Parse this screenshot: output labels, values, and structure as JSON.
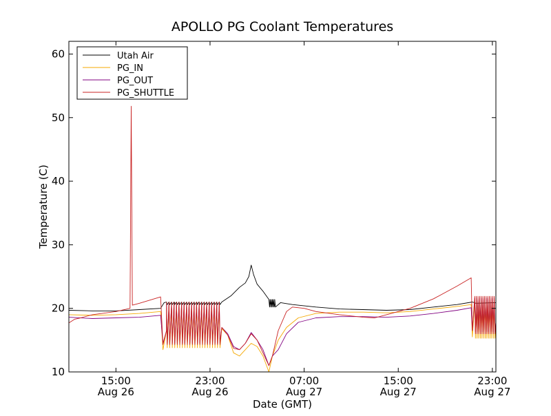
{
  "chart_data": {
    "type": "line",
    "title": "APOLLO PG Coolant Temperatures",
    "xlabel": "Date (GMT)",
    "ylabel": "Temperature (C)",
    "x_unit": "hours since Aug 26 00:00 GMT",
    "xlim": [
      11.0,
      47.3
    ],
    "ylim": [
      10,
      62
    ],
    "y_ticks": [
      10,
      20,
      30,
      40,
      50,
      60
    ],
    "x_ticks": [
      {
        "x": 15,
        "line1": "15:00",
        "line2": "Aug 26"
      },
      {
        "x": 23,
        "line1": "23:00",
        "line2": "Aug 26"
      },
      {
        "x": 31,
        "line1": "07:00",
        "line2": "Aug 27"
      },
      {
        "x": 39,
        "line1": "15:00",
        "line2": "Aug 27"
      },
      {
        "x": 47,
        "line1": "23:00",
        "line2": "Aug 27"
      }
    ],
    "legend_position": "top-left",
    "series": [
      {
        "name": "Utah Air",
        "color": "#000000",
        "points": [
          [
            11.0,
            19.7
          ],
          [
            13,
            19.6
          ],
          [
            15,
            19.6
          ],
          [
            17,
            19.8
          ],
          [
            18.8,
            20.0
          ],
          [
            19.1,
            20.9
          ],
          [
            20,
            20.9
          ],
          [
            22,
            20.9
          ],
          [
            24.0,
            21.0
          ],
          [
            24.8,
            22.0
          ],
          [
            25.5,
            23.3
          ],
          [
            26.0,
            24.0
          ],
          [
            26.3,
            25.0
          ],
          [
            26.5,
            26.8
          ],
          [
            26.7,
            25.3
          ],
          [
            27,
            23.8
          ],
          [
            27.5,
            22.7
          ],
          [
            28,
            21.4
          ],
          [
            28.5,
            20.6
          ],
          [
            29,
            20.9
          ],
          [
            30,
            20.6
          ],
          [
            32,
            20.2
          ],
          [
            34,
            19.9
          ],
          [
            36,
            19.8
          ],
          [
            38,
            19.7
          ],
          [
            40,
            19.8
          ],
          [
            42,
            20.2
          ],
          [
            44,
            20.6
          ],
          [
            45.3,
            21.0
          ],
          [
            45.6,
            20.8
          ],
          [
            47.3,
            20.9
          ]
        ],
        "cycles": [
          {
            "start": 19.3,
            "end": 24.0,
            "n": 22,
            "min": 20.6,
            "max": 21.0
          },
          {
            "start": 28.0,
            "end": 28.6,
            "n": 6,
            "min": 20.2,
            "max": 21.4
          }
        ]
      },
      {
        "name": "PG_IN",
        "color": "#f5a800",
        "points": [
          [
            11.0,
            19.0
          ],
          [
            13,
            18.9
          ],
          [
            15,
            19.0
          ],
          [
            17,
            19.2
          ],
          [
            18.8,
            19.5
          ],
          [
            19.0,
            13.5
          ],
          [
            19.3,
            16.5
          ],
          [
            24.0,
            16.8
          ],
          [
            24.5,
            15.8
          ],
          [
            25,
            13.0
          ],
          [
            25.5,
            12.5
          ],
          [
            26,
            13.5
          ],
          [
            26.5,
            14.5
          ],
          [
            27,
            14.0
          ],
          [
            27.5,
            12.5
          ],
          [
            28,
            10.0
          ],
          [
            28.3,
            12.5
          ],
          [
            28.8,
            15.0
          ],
          [
            29.5,
            17.0
          ],
          [
            30.5,
            18.5
          ],
          [
            32,
            19.2
          ],
          [
            34,
            19.4
          ],
          [
            36,
            19.4
          ],
          [
            38,
            19.3
          ],
          [
            40,
            19.5
          ],
          [
            42,
            19.9
          ],
          [
            44,
            20.3
          ],
          [
            45.2,
            20.6
          ],
          [
            45.3,
            15.5
          ],
          [
            45.6,
            18.0
          ],
          [
            47.3,
            17.5
          ]
        ],
        "cycles": [
          {
            "start": 19.3,
            "end": 24.0,
            "n": 22,
            "min": 13.8,
            "max": 20.0
          },
          {
            "start": 45.5,
            "end": 47.3,
            "n": 13,
            "min": 15.3,
            "max": 21.0
          }
        ]
      },
      {
        "name": "PG_OUT",
        "color": "#800080",
        "points": [
          [
            11.0,
            18.6
          ],
          [
            13,
            18.4
          ],
          [
            15,
            18.5
          ],
          [
            17,
            18.6
          ],
          [
            18.8,
            18.9
          ],
          [
            19.0,
            14.5
          ],
          [
            19.3,
            16.5
          ],
          [
            24.0,
            17.0
          ],
          [
            24.5,
            16.0
          ],
          [
            25,
            14.0
          ],
          [
            25.5,
            13.5
          ],
          [
            26,
            14.5
          ],
          [
            26.5,
            16.2
          ],
          [
            27,
            15.0
          ],
          [
            27.5,
            13.5
          ],
          [
            28,
            11.0
          ],
          [
            28.3,
            12.5
          ],
          [
            28.8,
            13.5
          ],
          [
            29.5,
            16.0
          ],
          [
            30.5,
            17.8
          ],
          [
            32,
            18.5
          ],
          [
            34,
            18.7
          ],
          [
            36,
            18.7
          ],
          [
            38,
            18.6
          ],
          [
            40,
            18.8
          ],
          [
            42,
            19.2
          ],
          [
            44,
            19.7
          ],
          [
            45.2,
            20.1
          ],
          [
            45.3,
            16.5
          ],
          [
            45.6,
            18.0
          ],
          [
            47.3,
            17.8
          ]
        ],
        "cycles": [
          {
            "start": 19.3,
            "end": 24.0,
            "n": 22,
            "min": 14.5,
            "max": 20.7
          },
          {
            "start": 45.5,
            "end": 47.3,
            "n": 13,
            "min": 16.3,
            "max": 21.6
          }
        ]
      },
      {
        "name": "PG_SHUTTLE",
        "color": "#c82020",
        "points": [
          [
            11.0,
            17.7
          ],
          [
            11.5,
            18.3
          ],
          [
            12,
            18.5
          ],
          [
            13,
            19.0
          ],
          [
            15,
            19.5
          ],
          [
            16.2,
            20.0
          ],
          [
            16.3,
            51.8
          ],
          [
            16.4,
            20.5
          ],
          [
            17,
            20.8
          ],
          [
            18.8,
            21.8
          ],
          [
            19.0,
            14.3
          ],
          [
            19.3,
            16.5
          ],
          [
            24.0,
            17.0
          ],
          [
            24.5,
            15.8
          ],
          [
            25,
            13.7
          ],
          [
            25.5,
            13.5
          ],
          [
            26,
            14.5
          ],
          [
            26.5,
            16.0
          ],
          [
            27,
            15.0
          ],
          [
            27.5,
            13.0
          ],
          [
            28,
            11.0
          ],
          [
            28.3,
            12.5
          ],
          [
            28.8,
            16.5
          ],
          [
            29.5,
            19.5
          ],
          [
            30,
            20.2
          ],
          [
            31,
            20.0
          ],
          [
            32,
            19.5
          ],
          [
            34,
            19.0
          ],
          [
            36,
            18.6
          ],
          [
            37,
            18.5
          ],
          [
            38,
            19.0
          ],
          [
            40,
            20.0
          ],
          [
            42,
            21.5
          ],
          [
            44,
            23.5
          ],
          [
            45.2,
            24.8
          ],
          [
            45.3,
            16.5
          ],
          [
            45.6,
            18.0
          ],
          [
            47.3,
            17.8
          ]
        ],
        "cycles": [
          {
            "start": 19.3,
            "end": 24.0,
            "n": 22,
            "min": 14.3,
            "max": 21.0
          },
          {
            "start": 45.5,
            "end": 47.3,
            "n": 13,
            "min": 16.0,
            "max": 21.9
          }
        ]
      }
    ]
  }
}
